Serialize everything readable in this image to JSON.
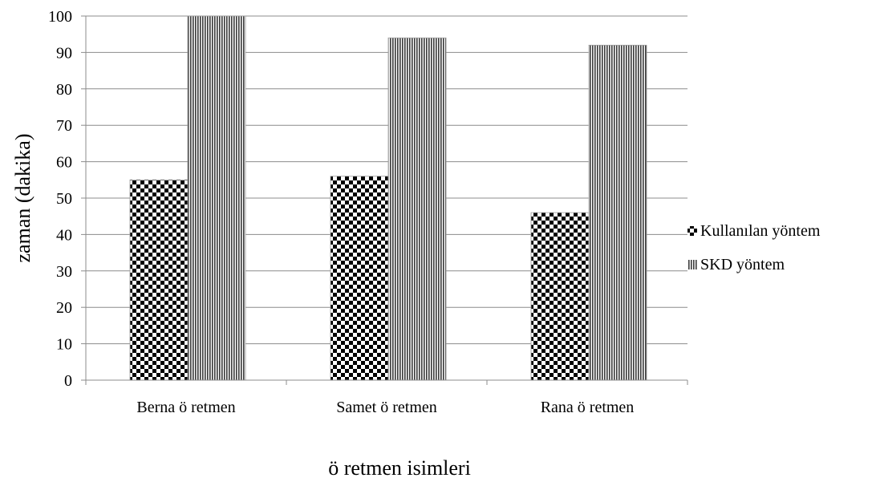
{
  "chart_data": {
    "type": "bar",
    "title": "",
    "xlabel": "ö  retmen isimleri",
    "ylabel": "zaman (dakika)",
    "ylim": [
      0,
      100
    ],
    "yticks": [
      0,
      10,
      20,
      30,
      40,
      50,
      60,
      70,
      80,
      90,
      100
    ],
    "grid": true,
    "legend_position": "right",
    "categories": [
      "Berna ö  retmen",
      "Samet ö  retmen",
      "Rana ö  retmen"
    ],
    "series": [
      {
        "name": "Kullanılan yöntem",
        "pattern": "checkerboard",
        "values": [
          55,
          56,
          46
        ]
      },
      {
        "name": "SKD yöntem",
        "pattern": "vertical-stripes",
        "values": [
          100,
          94,
          92
        ]
      }
    ]
  }
}
